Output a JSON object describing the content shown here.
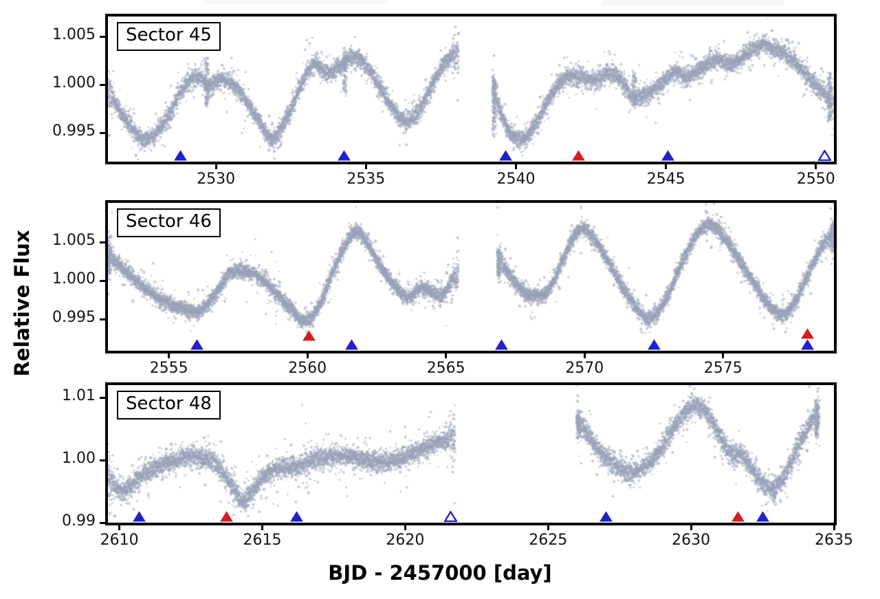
{
  "figure": {
    "ylabel": "Relative Flux",
    "xlabel": "BJD - 2457000 [day]",
    "colors": {
      "scatter": "#99a1b8",
      "blue_marker": "#2020cc",
      "red_marker": "#d41f1f",
      "open_marker_fill": "#ffffff",
      "axis": "#000000",
      "background": "#ffffff"
    }
  },
  "chart_data": [
    {
      "type": "scatter",
      "title": "Sector 45",
      "xlim": [
        2526.4,
        2550.6
      ],
      "ylim": [
        0.992,
        1.0071
      ],
      "xticks": [
        2530,
        2535,
        2540,
        2545,
        2550
      ],
      "yticks": [
        0.995,
        1.0,
        1.005
      ],
      "ytick_labels": [
        "0.995",
        "1.000",
        "1.005"
      ],
      "noise_sigma": 0.00042,
      "cadence_days": 0.0025,
      "segments": [
        {
          "keyframes": [
            [
              2526.4,
              0.9993
            ],
            [
              2526.9,
              0.9968
            ],
            [
              2527.6,
              0.9943
            ],
            [
              2528.3,
              0.9962
            ],
            [
              2529.0,
              1.0
            ],
            [
              2529.45,
              1.0008
            ],
            [
              2529.75,
              0.9998
            ],
            [
              2530.1,
              1.0005
            ],
            [
              2530.6,
              1.0
            ],
            [
              2531.0,
              0.9984
            ],
            [
              2531.45,
              0.9962
            ],
            [
              2531.85,
              0.9944
            ],
            [
              2532.3,
              0.9962
            ],
            [
              2532.85,
              1.0
            ],
            [
              2533.25,
              1.0022
            ],
            [
              2533.65,
              1.0013
            ],
            [
              2534.05,
              1.0017
            ],
            [
              2534.5,
              1.0028
            ],
            [
              2534.95,
              1.0022
            ],
            [
              2535.5,
              0.9995
            ],
            [
              2536.0,
              0.9972
            ],
            [
              2536.35,
              0.9962
            ],
            [
              2536.8,
              0.9975
            ],
            [
              2537.35,
              1.0008
            ],
            [
              2537.85,
              1.003
            ],
            [
              2538.1,
              1.0033
            ]
          ]
        },
        {
          "keyframes": [
            [
              2539.2,
              1.0
            ],
            [
              2539.45,
              0.9975
            ],
            [
              2539.75,
              0.9952
            ],
            [
              2540.2,
              0.9943
            ],
            [
              2540.7,
              0.9962
            ],
            [
              2541.2,
              0.999
            ],
            [
              2541.7,
              1.0008
            ],
            [
              2542.2,
              1.0008
            ],
            [
              2542.7,
              1.0005
            ],
            [
              2543.1,
              1.0012
            ],
            [
              2543.5,
              1.0005
            ],
            [
              2543.9,
              0.9987
            ],
            [
              2544.3,
              0.999
            ],
            [
              2544.8,
              1.0
            ],
            [
              2545.3,
              1.0013
            ],
            [
              2545.7,
              1.0008
            ],
            [
              2546.2,
              1.0018
            ],
            [
              2546.7,
              1.0026
            ],
            [
              2547.2,
              1.0022
            ],
            [
              2547.7,
              1.0032
            ],
            [
              2548.2,
              1.0042
            ],
            [
              2548.7,
              1.0036
            ],
            [
              2549.2,
              1.0026
            ],
            [
              2549.7,
              1.001
            ],
            [
              2550.1,
              0.9996
            ],
            [
              2550.6,
              0.9984
            ]
          ]
        }
      ],
      "columns": [
        {
          "t": 2529.7,
          "lo": 0.9978,
          "hi": 1.0028,
          "n": 110
        },
        {
          "t": 2534.3,
          "lo": 0.9992,
          "hi": 1.0038,
          "n": 90
        },
        {
          "t": 2539.28,
          "lo": 0.995,
          "hi": 1.0005,
          "n": 130
        },
        {
          "t": 2543.95,
          "lo": 0.9978,
          "hi": 1.0015,
          "n": 70
        },
        {
          "t": 2550.45,
          "lo": 0.9962,
          "hi": 1.0008,
          "n": 110
        }
      ],
      "markers": [
        {
          "t": 2528.81,
          "style": "blue_filled"
        },
        {
          "t": 2534.26,
          "style": "blue_filled"
        },
        {
          "t": 2539.66,
          "style": "blue_filled"
        },
        {
          "t": 2542.08,
          "style": "red_filled"
        },
        {
          "t": 2545.06,
          "style": "blue_filled"
        },
        {
          "t": 2550.3,
          "style": "blue_open"
        }
      ]
    },
    {
      "type": "scatter",
      "title": "Sector 46",
      "xlim": [
        2552.8,
        2579.0
      ],
      "ylim": [
        0.9909,
        1.0101
      ],
      "xticks": [
        2555,
        2560,
        2565,
        2570,
        2575
      ],
      "yticks": [
        0.995,
        1.0,
        1.005
      ],
      "ytick_labels": [
        "0.995",
        "1.000",
        "1.005"
      ],
      "noise_sigma": 0.00045,
      "cadence_days": 0.0025,
      "segments": [
        {
          "keyframes": [
            [
              2552.8,
              1.0032
            ],
            [
              2553.5,
              1.001
            ],
            [
              2554.2,
              0.9988
            ],
            [
              2555.0,
              0.997
            ],
            [
              2555.6,
              0.9963
            ],
            [
              2556.1,
              0.996
            ],
            [
              2556.7,
              0.9983
            ],
            [
              2557.2,
              1.001
            ],
            [
              2557.8,
              1.0012
            ],
            [
              2558.3,
              1.0003
            ],
            [
              2558.9,
              0.9983
            ],
            [
              2559.5,
              0.996
            ],
            [
              2559.9,
              0.9948
            ],
            [
              2560.4,
              0.9966
            ],
            [
              2560.9,
              1.001
            ],
            [
              2561.4,
              1.0048
            ],
            [
              2561.75,
              1.0063
            ],
            [
              2562.1,
              1.0052
            ],
            [
              2562.6,
              1.0022
            ],
            [
              2563.1,
              0.9995
            ],
            [
              2563.6,
              0.9978
            ],
            [
              2564.1,
              0.999
            ],
            [
              2564.5,
              0.9984
            ],
            [
              2564.9,
              0.9982
            ],
            [
              2565.25,
              1.0002
            ],
            [
              2565.45,
              1.001
            ]
          ]
        },
        {
          "keyframes": [
            [
              2566.85,
              1.003
            ],
            [
              2567.3,
              1.0006
            ],
            [
              2567.8,
              0.9986
            ],
            [
              2568.3,
              0.998
            ],
            [
              2568.75,
              0.999
            ],
            [
              2569.25,
              1.003
            ],
            [
              2569.8,
              1.0066
            ],
            [
              2570.2,
              1.006
            ],
            [
              2570.8,
              1.0028
            ],
            [
              2571.4,
              0.999
            ],
            [
              2572.0,
              0.996
            ],
            [
              2572.35,
              0.9951
            ],
            [
              2572.9,
              0.9974
            ],
            [
              2573.5,
              1.0022
            ],
            [
              2574.1,
              1.0062
            ],
            [
              2574.55,
              1.0072
            ],
            [
              2575.0,
              1.0058
            ],
            [
              2575.6,
              1.0026
            ],
            [
              2576.2,
              0.9992
            ],
            [
              2576.7,
              0.9966
            ],
            [
              2577.2,
              0.9956
            ],
            [
              2577.7,
              0.998
            ],
            [
              2578.2,
              1.0018
            ],
            [
              2578.65,
              1.0048
            ],
            [
              2579.0,
              1.0058
            ]
          ]
        }
      ],
      "columns": [
        {
          "t": 2552.85,
          "lo": 1.0008,
          "hi": 1.0045,
          "n": 80
        },
        {
          "t": 2566.9,
          "lo": 1.0005,
          "hi": 1.0038,
          "n": 100
        },
        {
          "t": 2578.95,
          "lo": 1.0038,
          "hi": 1.0075,
          "n": 80
        }
      ],
      "markers": [
        {
          "t": 2556.0,
          "style": "blue_filled"
        },
        {
          "t": 2560.06,
          "style": "red_filled",
          "lift": 13
        },
        {
          "t": 2561.6,
          "style": "blue_filled"
        },
        {
          "t": 2567.0,
          "style": "blue_filled"
        },
        {
          "t": 2572.5,
          "style": "blue_filled"
        },
        {
          "t": 2578.05,
          "style": "blue_filled"
        },
        {
          "t": 2578.05,
          "style": "red_filled",
          "lift": 16
        }
      ]
    },
    {
      "type": "scatter",
      "title": "Sector 48",
      "xlim": [
        2609.6,
        2635.0
      ],
      "ylim": [
        0.99,
        1.012
      ],
      "xticks": [
        2610,
        2615,
        2620,
        2625,
        2630,
        2635
      ],
      "yticks": [
        0.99,
        1.0,
        1.01
      ],
      "ytick_labels": [
        "0.99",
        "1.00",
        "1.01"
      ],
      "noise_sigma": 0.00075,
      "cadence_days": 0.0025,
      "segments": [
        {
          "keyframes": [
            [
              2609.6,
              0.997
            ],
            [
              2609.9,
              0.9956
            ],
            [
              2610.2,
              0.9952
            ],
            [
              2610.7,
              0.9972
            ],
            [
              2611.3,
              0.9988
            ],
            [
              2611.9,
              0.9998
            ],
            [
              2612.5,
              1.0006
            ],
            [
              2612.9,
              1.0004
            ],
            [
              2613.3,
              0.9996
            ],
            [
              2613.8,
              0.9968
            ],
            [
              2614.3,
              0.9938
            ],
            [
              2614.75,
              0.9956
            ],
            [
              2615.2,
              0.998
            ],
            [
              2615.7,
              0.9988
            ],
            [
              2616.2,
              0.999
            ],
            [
              2616.8,
              1.0
            ],
            [
              2617.4,
              1.0006
            ],
            [
              2618.0,
              1.0006
            ],
            [
              2618.6,
              1.0
            ],
            [
              2619.2,
              0.9996
            ],
            [
              2619.8,
              1.0002
            ],
            [
              2620.4,
              1.0014
            ],
            [
              2621.0,
              1.0026
            ],
            [
              2621.5,
              1.0034
            ],
            [
              2621.75,
              1.0038
            ]
          ]
        },
        {
          "keyframes": [
            [
              2626.0,
              1.0065
            ],
            [
              2626.4,
              1.004
            ],
            [
              2626.9,
              1.001
            ],
            [
              2627.4,
              0.999
            ],
            [
              2627.9,
              0.9982
            ],
            [
              2628.4,
              0.999
            ],
            [
              2628.9,
              1.0016
            ],
            [
              2629.4,
              1.0052
            ],
            [
              2629.9,
              1.008
            ],
            [
              2630.2,
              1.0086
            ],
            [
              2630.6,
              1.0072
            ],
            [
              2631.0,
              1.004
            ],
            [
              2631.45,
              1.0008
            ],
            [
              2631.75,
              1.001
            ],
            [
              2632.1,
              0.9988
            ],
            [
              2632.5,
              0.9964
            ],
            [
              2632.9,
              0.9956
            ],
            [
              2633.3,
              0.9978
            ],
            [
              2633.7,
              1.0018
            ],
            [
              2634.1,
              1.0052
            ],
            [
              2634.5,
              1.0078
            ]
          ]
        }
      ],
      "columns": [
        {
          "t": 2626.05,
          "lo": 1.004,
          "hi": 1.0072,
          "n": 70
        },
        {
          "t": 2634.4,
          "lo": 1.004,
          "hi": 1.0095,
          "n": 110
        },
        {
          "t": 2632.9,
          "lo": 0.9934,
          "hi": 0.9952,
          "n": 25
        }
      ],
      "markers": [
        {
          "t": 2610.7,
          "style": "blue_filled"
        },
        {
          "t": 2613.74,
          "style": "red_filled"
        },
        {
          "t": 2616.2,
          "style": "blue_filled"
        },
        {
          "t": 2621.58,
          "style": "blue_open"
        },
        {
          "t": 2627.02,
          "style": "blue_filled"
        },
        {
          "t": 2631.65,
          "style": "red_filled"
        },
        {
          "t": 2632.52,
          "style": "blue_filled"
        }
      ]
    }
  ]
}
